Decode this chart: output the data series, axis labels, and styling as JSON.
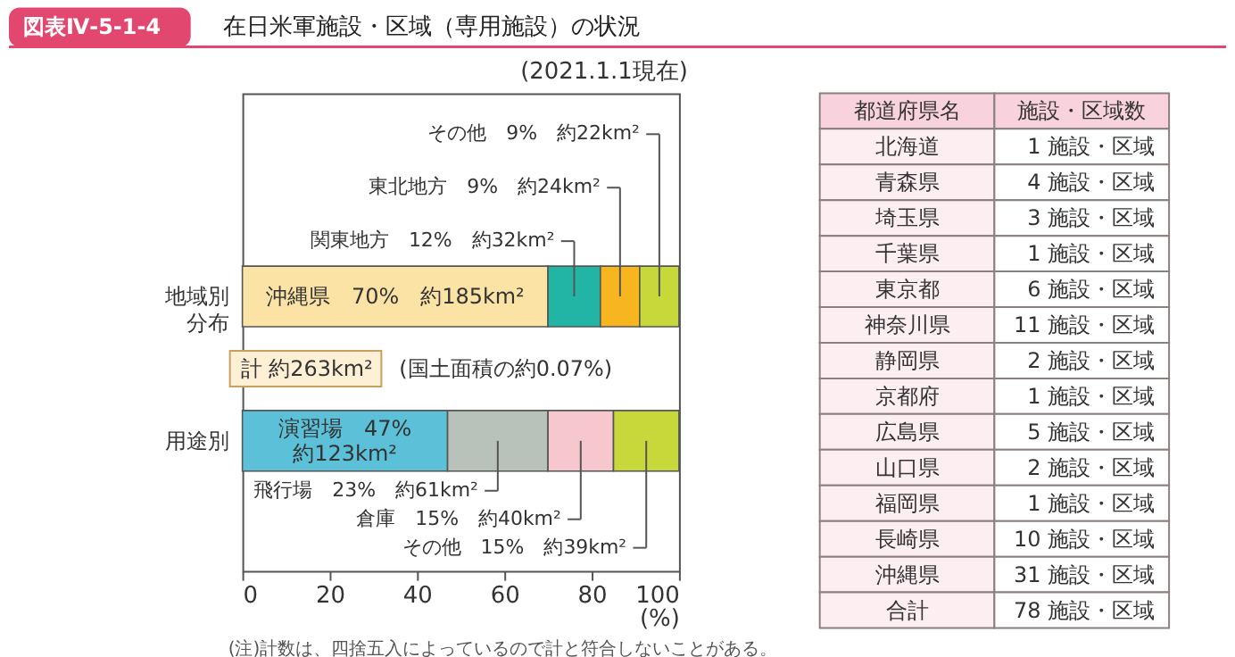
{
  "chart_data": [
    {
      "type": "bar",
      "title": "在日米軍施設・区域（専用施設）の状況",
      "orientation": "horizontal",
      "stacked": true,
      "categories": [
        "地域別分布",
        "用途別"
      ],
      "xlabel": "(%)",
      "xlim": [
        0,
        100
      ],
      "xticks": [
        0,
        20,
        40,
        60,
        80,
        100
      ],
      "grid": false,
      "series": [
        {
          "colors": [
            "#fbe3a6",
            "#5bc0d8"
          ],
          "values": [
            70,
            47
          ],
          "value_labels": [
            "沖縄県　70%　約185km²",
            "演習場　47%\n約123km²"
          ]
        },
        {
          "colors": [
            "#22b5a5",
            "#b9c1bb"
          ],
          "values": [
            12,
            23
          ],
          "value_labels": [
            "関東地方　12%　約32km²",
            "飛行場　23%　約61km²"
          ]
        },
        {
          "colors": [
            "#f7b51f",
            "#f6c7cc"
          ],
          "values": [
            9,
            15
          ],
          "value_labels": [
            "東北地方　9%　約24km²",
            "倉庫　15%　約40km²"
          ]
        },
        {
          "colors": [
            "#c7d93a",
            "#c7d93a"
          ],
          "values": [
            9,
            15
          ],
          "value_labels": [
            "その他　9%　約22km²",
            "その他　15%　約39km²"
          ]
        }
      ],
      "annotations": [
        "図表Ⅳ-5-1-4",
        "(2021.1.1現在)",
        "計 約263km²",
        "(国土面積の約0.07%)",
        "(注)計数は、四捨五入によっているので計と符合しないことがある。"
      ]
    },
    {
      "type": "other",
      "annotations": [
        "都道府県名",
        "施設・区域数"
      ],
      "categories": [
        "北海道",
        "青森県",
        "埼玉県",
        "千葉県",
        "東京都",
        "神奈川県",
        "静岡県",
        "京都府",
        "広島県",
        "山口県",
        "福岡県",
        "長崎県",
        "沖縄県",
        "合計"
      ],
      "value_labels": [
        "1 施設・区域",
        "4 施設・区域",
        "3 施設・区域",
        "1 施設・区域",
        "6 施設・区域",
        "11 施設・区域",
        "2 施設・区域",
        "1 施設・区域",
        "5 施設・区域",
        "2 施設・区域",
        "1 施設・区域",
        "10 施設・区域",
        "31 施設・区域",
        "78 施設・区域"
      ]
    }
  ]
}
